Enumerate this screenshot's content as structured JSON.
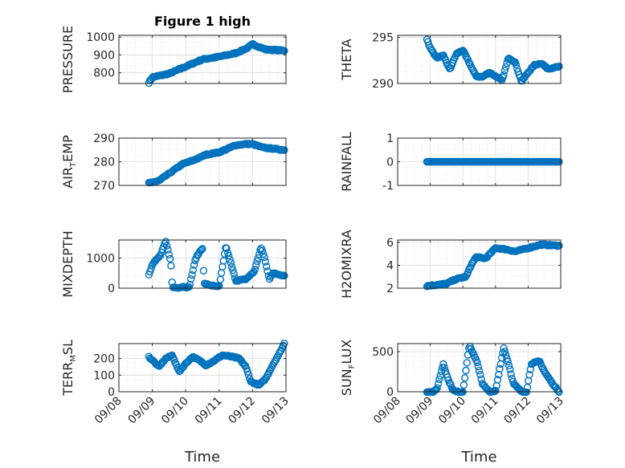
{
  "colors": {
    "marker": "#0072BD",
    "axis": "#262626",
    "grid": "#dcdcdc"
  },
  "xaxis": {
    "label": "Time",
    "ticks": [
      "09/08",
      "09/09",
      "09/10",
      "09/11",
      "09/12",
      "09/13"
    ],
    "range_days": [
      0,
      5
    ],
    "data_start_day": 0.9,
    "data_end_day": 4.95
  },
  "chart_data": [
    {
      "type": "scatter",
      "id": "pressure",
      "title": "Figure 1 high",
      "ylabel": "PRESSURE",
      "ylim": [
        740,
        1010
      ],
      "yticks": [
        "1000",
        "900",
        "800"
      ],
      "ytick_values": [
        1000,
        900,
        800
      ],
      "anchors_x": [
        0.9,
        1.0,
        1.5,
        2.0,
        2.5,
        3.0,
        3.5,
        3.85,
        4.0,
        4.4,
        4.95
      ],
      "anchors_y": [
        745,
        775,
        795,
        835,
        875,
        890,
        910,
        940,
        960,
        930,
        925
      ]
    },
    {
      "type": "scatter",
      "id": "theta",
      "title": "",
      "ylabel": "THETA",
      "ylim": [
        290,
        295.2
      ],
      "yticks": [
        "295",
        "290"
      ],
      "ytick_values": [
        295,
        290
      ],
      "anchors_x": [
        0.9,
        1.0,
        1.2,
        1.4,
        1.6,
        1.8,
        2.0,
        2.2,
        2.4,
        2.6,
        2.8,
        3.0,
        3.2,
        3.4,
        3.6,
        3.8,
        4.0,
        4.2,
        4.4,
        4.6,
        4.95
      ],
      "anchors_y": [
        294.8,
        293.8,
        292.8,
        293.0,
        291.5,
        293.2,
        293.6,
        292.2,
        290.8,
        290.7,
        291.2,
        290.8,
        290.3,
        292.8,
        292.3,
        290.2,
        291.2,
        292.0,
        292.2,
        291.6,
        291.8
      ]
    },
    {
      "type": "scatter",
      "id": "air_temp",
      "title": "",
      "ylabel": "AIR",
      "ylabel_sub": "T",
      "ylabel_rest": "EMP",
      "ylim": [
        270,
        290
      ],
      "yticks": [
        "290",
        "280",
        "270"
      ],
      "ytick_values": [
        290,
        280,
        270
      ],
      "anchors_x": [
        0.9,
        1.2,
        1.5,
        1.9,
        2.3,
        2.6,
        3.0,
        3.5,
        3.8,
        4.0,
        4.3,
        4.95
      ],
      "anchors_y": [
        271,
        272,
        275,
        279,
        281,
        283,
        284,
        287,
        287.5,
        287.5,
        286,
        285
      ]
    },
    {
      "type": "scatter",
      "id": "rainfall",
      "title": "",
      "ylabel": "RAINFALL",
      "ylim": [
        -1,
        1
      ],
      "yticks": [
        "1",
        "0",
        "-1"
      ],
      "ytick_values": [
        1,
        0,
        -1
      ],
      "anchors_x": [
        0.9,
        4.95
      ],
      "anchors_y": [
        0,
        0
      ]
    },
    {
      "type": "scatter",
      "id": "mixdepth",
      "title": "",
      "ylabel": "MIXDEPTH",
      "ylim": [
        0,
        1600
      ],
      "yticks": [
        "1000",
        "0"
      ],
      "ytick_values": [
        1000,
        0
      ],
      "anchors_x": [
        0.9,
        1.0,
        1.25,
        1.4,
        1.55,
        1.6,
        1.75,
        1.95,
        2.1,
        2.3,
        2.5,
        2.55,
        2.8,
        3.0,
        3.2,
        3.5,
        3.8,
        4.05,
        4.25,
        4.35,
        4.5,
        4.6,
        4.95
      ],
      "anchors_y": [
        450,
        800,
        1100,
        1550,
        900,
        30,
        20,
        50,
        20,
        1000,
        1350,
        150,
        80,
        40,
        1400,
        250,
        300,
        550,
        1350,
        1050,
        300,
        500,
        420
      ]
    },
    {
      "type": "scatter",
      "id": "h2omixra",
      "title": "",
      "ylabel": "H2OMIXRA",
      "ylim": [
        2,
        6.2
      ],
      "yticks": [
        "6",
        "4",
        "2"
      ],
      "ytick_values": [
        6,
        4,
        2
      ],
      "anchors_x": [
        0.9,
        1.2,
        1.5,
        1.8,
        2.1,
        2.25,
        2.4,
        2.7,
        3.0,
        3.3,
        3.6,
        4.0,
        4.4,
        4.95
      ],
      "anchors_y": [
        2.2,
        2.3,
        2.4,
        2.8,
        3.0,
        4.0,
        4.7,
        4.6,
        5.5,
        5.4,
        5.2,
        5.5,
        5.8,
        5.7
      ]
    },
    {
      "type": "scatter",
      "id": "terr_msl",
      "title": "",
      "ylabel": "TERR",
      "ylabel_sub": "M",
      "ylabel_rest": "SL",
      "ylim": [
        0,
        290
      ],
      "yticks": [
        "200",
        "100",
        "0"
      ],
      "ytick_values": [
        200,
        100,
        0
      ],
      "anchors_x": [
        0.9,
        1.05,
        1.2,
        1.4,
        1.6,
        1.8,
        2.0,
        2.2,
        2.4,
        2.6,
        2.8,
        3.1,
        3.4,
        3.6,
        3.8,
        3.95,
        4.2,
        4.4,
        4.6,
        4.8,
        4.95
      ],
      "anchors_y": [
        210,
        180,
        150,
        200,
        220,
        120,
        170,
        210,
        190,
        160,
        180,
        220,
        210,
        200,
        150,
        60,
        40,
        80,
        160,
        230,
        290
      ]
    },
    {
      "type": "scatter",
      "id": "sun_flux",
      "title": "",
      "ylabel": "SUN",
      "ylabel_sub": "F",
      "ylabel_rest": "LUX",
      "ylim": [
        0,
        600
      ],
      "yticks": [
        "500",
        "0"
      ],
      "ytick_values": [
        500,
        0
      ],
      "anchors_x": [
        0.9,
        1.1,
        1.2,
        1.4,
        1.55,
        1.7,
        1.8,
        2.0,
        2.2,
        2.45,
        2.6,
        2.8,
        3.0,
        3.25,
        3.4,
        3.55,
        3.8,
        3.95,
        4.1,
        4.35,
        4.5,
        4.75,
        4.95
      ],
      "anchors_y": [
        0,
        0,
        30,
        350,
        150,
        20,
        0,
        0,
        580,
        350,
        100,
        0,
        0,
        550,
        350,
        100,
        0,
        0,
        350,
        380,
        250,
        100,
        0
      ]
    }
  ]
}
